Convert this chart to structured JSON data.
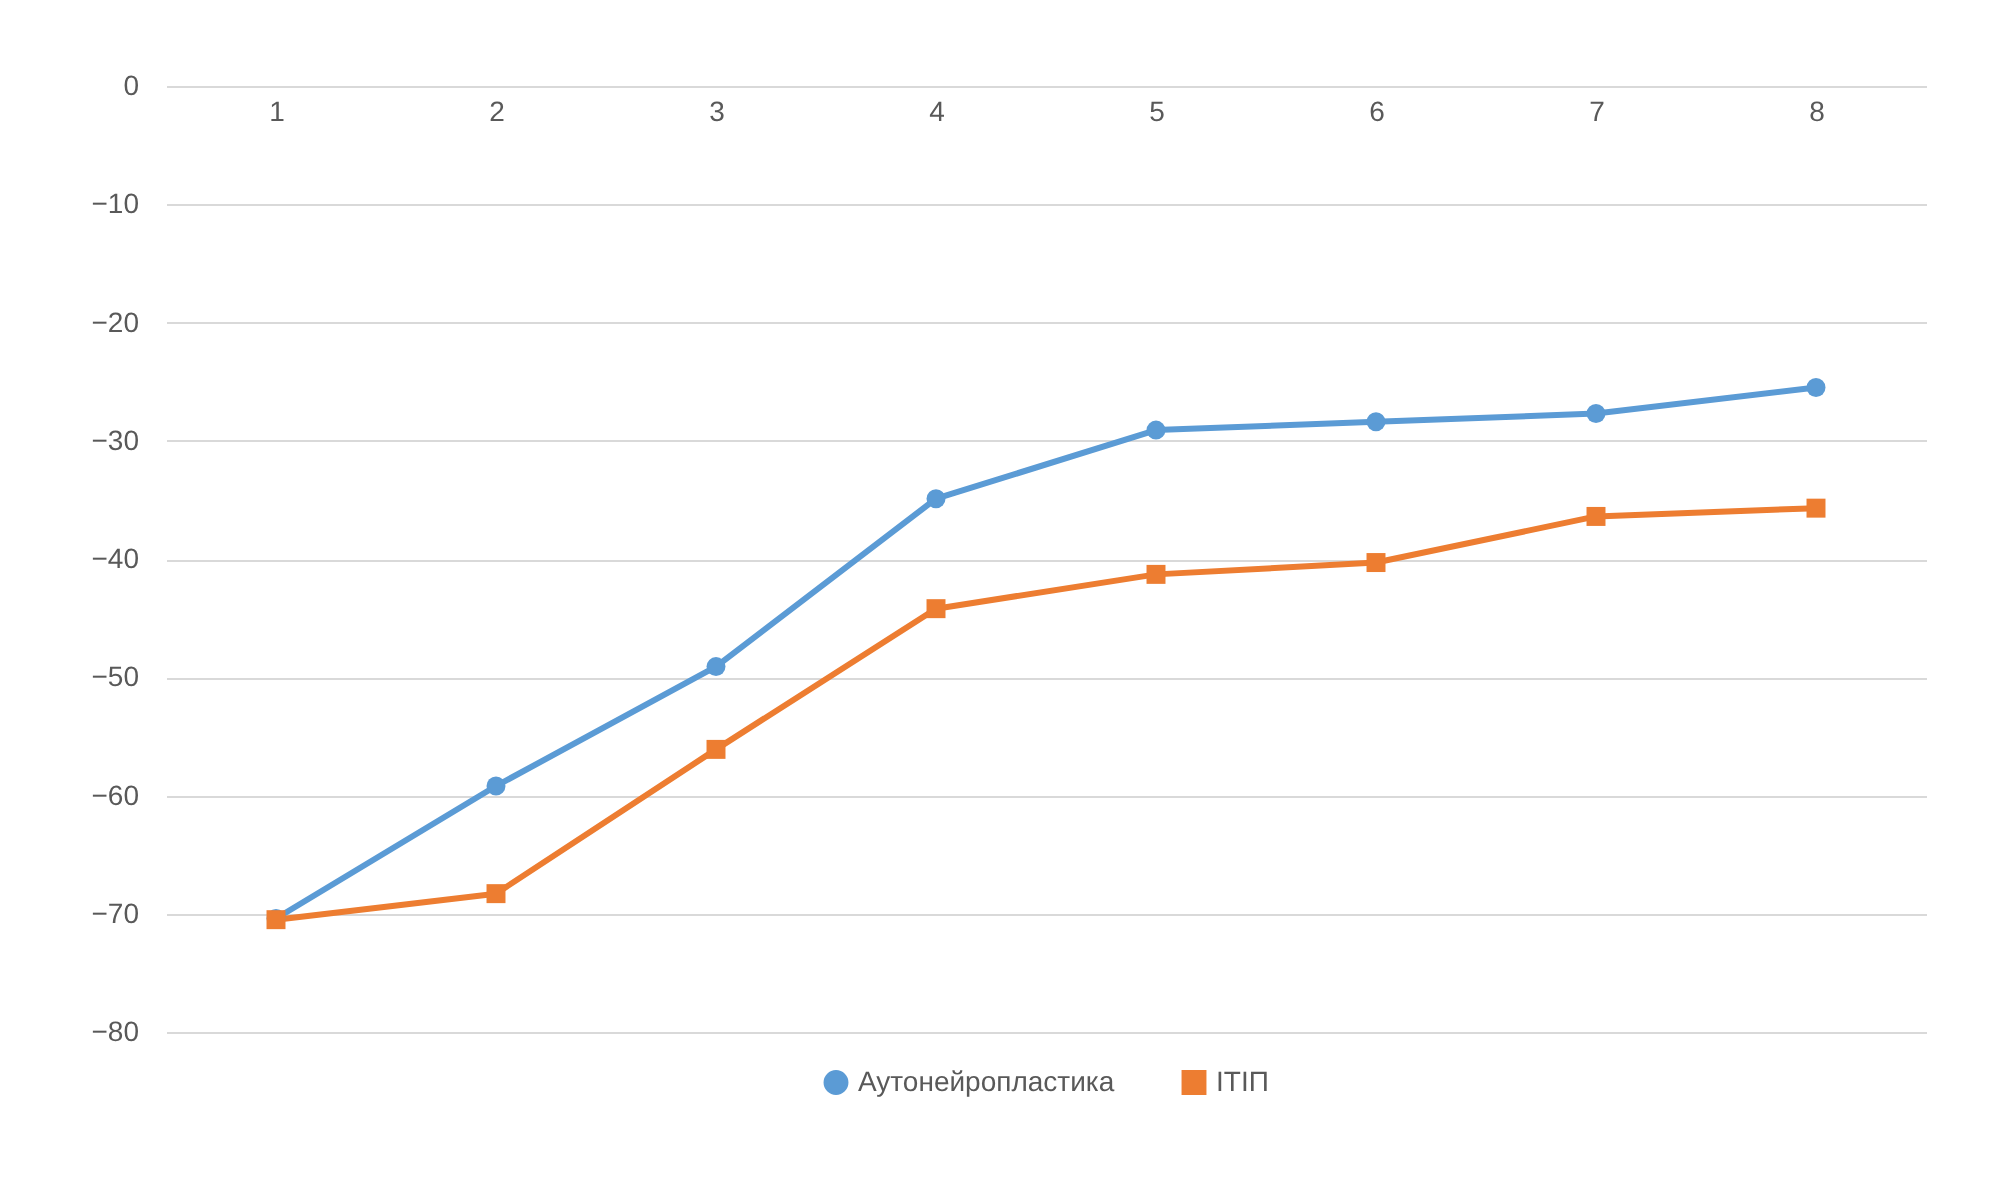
{
  "chart_data": {
    "type": "line",
    "categories": [
      "1",
      "2",
      "3",
      "4",
      "5",
      "6",
      "7",
      "8"
    ],
    "series": [
      {
        "name": "Аутонейропластика",
        "color": "#5b9bd5",
        "marker": "circle",
        "values": [
          -70.4,
          -59.2,
          -49.1,
          -34.9,
          -29.1,
          -28.4,
          -27.7,
          -25.5
        ]
      },
      {
        "name": "ІТІП",
        "color": "#ed7d31",
        "marker": "square",
        "values": [
          -70.5,
          -68.3,
          -56.1,
          -44.2,
          -41.3,
          -40.3,
          -36.4,
          -35.7
        ]
      }
    ],
    "ylim": [
      -80,
      0
    ],
    "yticks": [
      0,
      -10,
      -20,
      -30,
      -40,
      -50,
      -60,
      -70,
      -80
    ],
    "grid": "y",
    "legend": "bottom"
  }
}
